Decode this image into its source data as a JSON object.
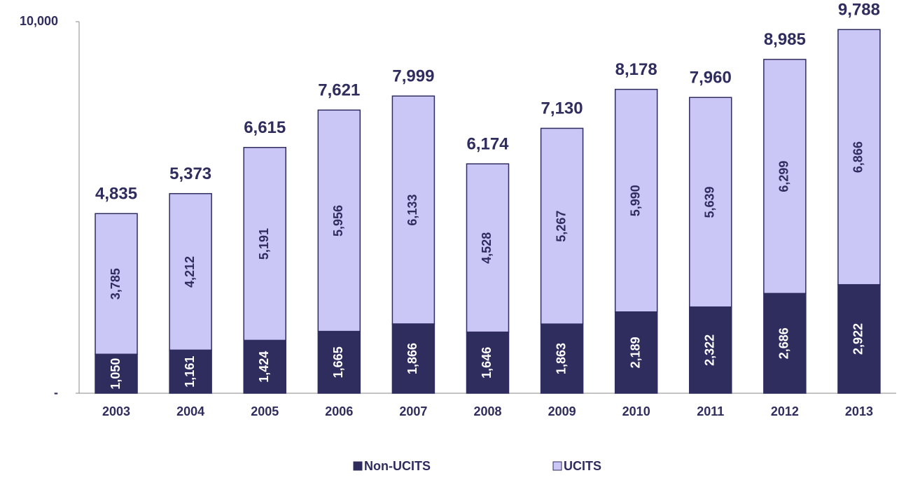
{
  "chart_data": {
    "type": "stacked_bar",
    "categories": [
      "2003",
      "2004",
      "2005",
      "2006",
      "2007",
      "2008",
      "2009",
      "2010",
      "2011",
      "2012",
      "2013"
    ],
    "series": [
      {
        "name": "Non-UCITS",
        "color": "#2f2c5e",
        "values": [
          1050,
          1161,
          1424,
          1665,
          1866,
          1646,
          1863,
          2189,
          2322,
          2686,
          2922
        ],
        "value_labels": [
          "1,050",
          "1,161",
          "1,424",
          "1,665",
          "1,866",
          "1,646",
          "1,863",
          "2,189",
          "2,322",
          "2,686",
          "2,922"
        ]
      },
      {
        "name": "UCITS",
        "color": "#cac7f6",
        "values": [
          3785,
          4212,
          5191,
          5956,
          6133,
          4528,
          5267,
          5990,
          5639,
          6299,
          6866
        ],
        "value_labels": [
          "3,785",
          "4,212",
          "5,191",
          "5,956",
          "6,133",
          "4,528",
          "5,267",
          "5,990",
          "5,639",
          "6,299",
          "6,866"
        ]
      }
    ],
    "totals": [
      4835,
      5373,
      6615,
      7621,
      7999,
      6174,
      7130,
      8178,
      7960,
      8985,
      9788
    ],
    "total_labels": [
      "4,835",
      "5,373",
      "6,615",
      "7,621",
      "7,999",
      "6,174",
      "7,130",
      "8,178",
      "7,960",
      "8,985",
      "9,788"
    ],
    "ylim": [
      0,
      10000
    ],
    "yticks": [
      {
        "value": 0,
        "label": "-"
      },
      {
        "value": 10000,
        "label": "10,000"
      }
    ],
    "grid": false,
    "legend": "bottom"
  }
}
